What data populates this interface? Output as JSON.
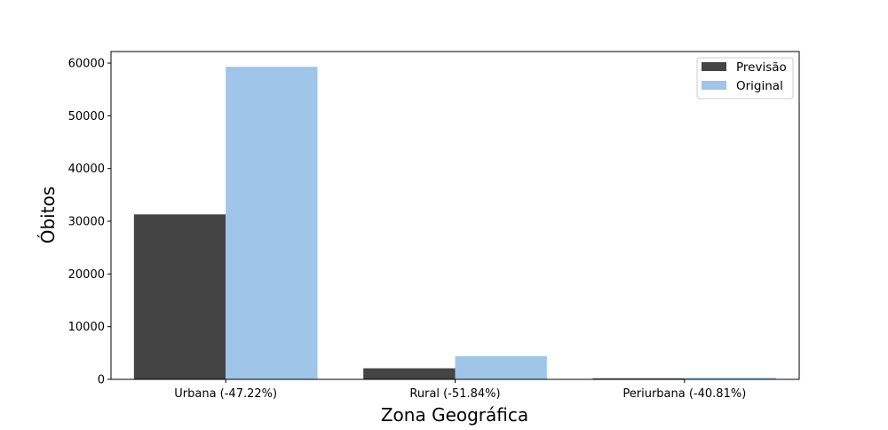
{
  "chart_data": {
    "type": "bar",
    "categories": [
      "Urbana (-47.22%)",
      "Rural (-51.84%)",
      "Periurbana (-40.81%)"
    ],
    "series": [
      {
        "name": "Previsão",
        "values": [
          31300,
          2100,
          200
        ]
      },
      {
        "name": "Original",
        "values": [
          59300,
          4400,
          300
        ]
      }
    ],
    "colors": [
      "#444444",
      "#9fc5e8"
    ],
    "xlabel": "Zona Geográfica",
    "ylabel": "Óbitos",
    "ylim": [
      0,
      62200
    ],
    "yticks": [
      0,
      10000,
      20000,
      30000,
      40000,
      50000,
      60000
    ],
    "grid": false,
    "legend_position": "top-right"
  }
}
